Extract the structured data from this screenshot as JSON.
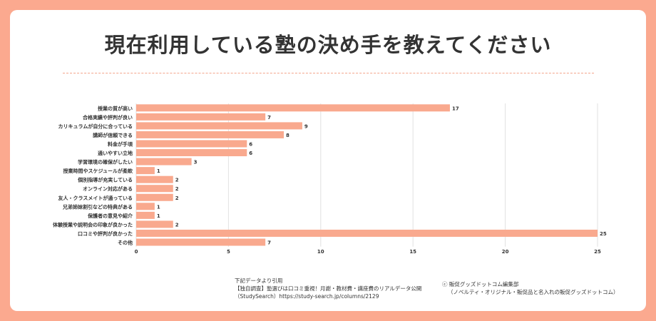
{
  "title": "現在利用している塾の決め手を教えてください",
  "chart_data": {
    "type": "bar",
    "orientation": "horizontal",
    "categories": [
      "授業の質が高い",
      "合格実績や評判が良い",
      "カリキュラムが自分に合っている",
      "講師が信頼できる",
      "料金が手頃",
      "通いやすい立地",
      "学習環境の確保がしたい",
      "授業時間やスケジュールが柔軟",
      "個別指導が充実している",
      "オンライン対応がある",
      "友人・クラスメイトが通っている",
      "兄弟姉妹割引などの特典がある",
      "保護者の意見や紹介",
      "体験授業や説明会の印象が良かった",
      "口コミや評判が良かった",
      "その他"
    ],
    "values": [
      17,
      7,
      9,
      8,
      6,
      6,
      3,
      1,
      2,
      2,
      2,
      1,
      1,
      2,
      25,
      7
    ],
    "xlim": [
      0,
      25
    ],
    "xticks": [
      "0",
      "5",
      "10",
      "15",
      "20",
      "25"
    ],
    "grid": true,
    "bar_color": "#f9a98e"
  },
  "source": {
    "line1": "下記データより引用",
    "line2": "【独自調査】塾選びは口コミ重視！月謝・教材費・講座費のリアルデータ公開",
    "line3": "（StudySearch）https://study-search.jp/columns/2129"
  },
  "credit": {
    "line1": "ⓒ 販促グッズドットコム編集部",
    "line2": "（ノベルティ・オリジナル・販促品と名入れの販促グッズドットコム）"
  }
}
